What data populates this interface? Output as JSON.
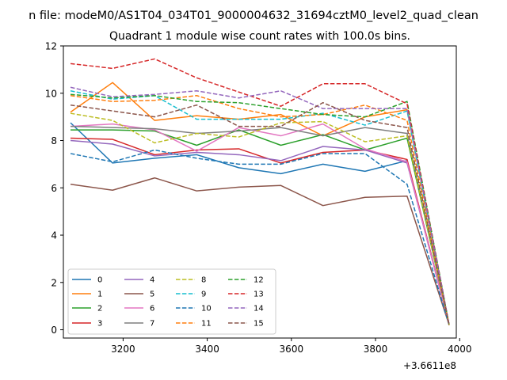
{
  "figure": {
    "suptitle": "n file: modeM0/AS1T04_034T01_9000004632_31694cztM0_level2_quad_clean",
    "background": "#ffffff"
  },
  "chart_data": {
    "type": "line",
    "title": "Quadrant 1 module wise count rates with 100.0s bins.",
    "xlabel": "",
    "ylabel": "",
    "x_offset_label": "+3.6611e8",
    "x_offset": 366110000,
    "x": [
      3075,
      3175,
      3275,
      3375,
      3475,
      3575,
      3675,
      3775,
      3875,
      3975
    ],
    "xlim": [
      3058,
      3992
    ],
    "ylim": [
      -0.35,
      12.0
    ],
    "xticks": [
      3200,
      3400,
      3600,
      3800,
      4000
    ],
    "xtick_labels": [
      "3200",
      "3400",
      "3600",
      "3800",
      "4000"
    ],
    "yticks": [
      0,
      2,
      4,
      6,
      8,
      10,
      12
    ],
    "ytick_labels": [
      "0",
      "2",
      "4",
      "6",
      "8",
      "10",
      "12"
    ],
    "grid": false,
    "legend": {
      "location": "lower-left",
      "columns": 4
    },
    "series": [
      {
        "name": "0",
        "color": "#1f77b4",
        "dash": "solid",
        "values": [
          8.75,
          7.05,
          7.25,
          7.4,
          6.85,
          6.6,
          7.0,
          6.7,
          7.15,
          0.2
        ]
      },
      {
        "name": "1",
        "color": "#ff7f0e",
        "dash": "solid",
        "values": [
          9.2,
          10.45,
          8.85,
          9.05,
          8.9,
          9.1,
          8.2,
          9.0,
          9.3,
          0.2
        ]
      },
      {
        "name": "2",
        "color": "#2ca02c",
        "dash": "solid",
        "values": [
          8.45,
          8.45,
          8.4,
          7.8,
          8.45,
          7.8,
          8.25,
          7.6,
          8.1,
          0.2
        ]
      },
      {
        "name": "3",
        "color": "#d62728",
        "dash": "solid",
        "values": [
          8.1,
          8.05,
          7.4,
          7.6,
          7.65,
          7.05,
          7.5,
          7.6,
          7.2,
          0.2
        ]
      },
      {
        "name": "4",
        "color": "#9467bd",
        "dash": "solid",
        "values": [
          8.0,
          7.85,
          7.35,
          7.5,
          7.4,
          7.15,
          7.75,
          7.6,
          7.05,
          0.2
        ]
      },
      {
        "name": "5",
        "color": "#8c564b",
        "dash": "solid",
        "values": [
          6.15,
          5.9,
          6.42,
          5.87,
          6.03,
          6.1,
          5.25,
          5.6,
          5.65,
          0.2
        ]
      },
      {
        "name": "6",
        "color": "#e377c2",
        "dash": "solid",
        "values": [
          8.6,
          8.7,
          8.45,
          7.55,
          8.55,
          8.2,
          8.7,
          7.65,
          7.1,
          0.2
        ]
      },
      {
        "name": "7",
        "color": "#7f7f7f",
        "dash": "solid",
        "values": [
          8.6,
          8.55,
          8.5,
          8.3,
          8.4,
          8.55,
          8.2,
          8.55,
          8.3,
          0.2
        ]
      },
      {
        "name": "8",
        "color": "#bcbd22",
        "dash": "dashed",
        "values": [
          9.15,
          8.85,
          7.9,
          8.3,
          8.15,
          8.75,
          8.8,
          7.95,
          8.2,
          0.2
        ]
      },
      {
        "name": "9",
        "color": "#17becf",
        "dash": "dashed",
        "values": [
          10.1,
          9.75,
          9.9,
          8.9,
          8.9,
          8.9,
          9.15,
          8.65,
          9.25,
          0.2
        ]
      },
      {
        "name": "10",
        "color": "#1f77b4",
        "dash": "dashed",
        "values": [
          7.45,
          7.1,
          7.6,
          7.25,
          7.0,
          7.0,
          7.45,
          7.45,
          6.15,
          0.2
        ]
      },
      {
        "name": "11",
        "color": "#ff7f0e",
        "dash": "dashed",
        "values": [
          9.9,
          9.65,
          9.7,
          9.9,
          9.35,
          9.0,
          9.1,
          9.5,
          8.85,
          0.2
        ]
      },
      {
        "name": "12",
        "color": "#2ca02c",
        "dash": "dashed",
        "values": [
          9.95,
          9.8,
          9.9,
          9.65,
          9.6,
          9.35,
          9.1,
          9.0,
          9.65,
          0.2
        ]
      },
      {
        "name": "13",
        "color": "#d62728",
        "dash": "dashed",
        "values": [
          11.25,
          11.05,
          11.45,
          10.65,
          10.05,
          9.45,
          10.4,
          10.4,
          9.55,
          0.2
        ]
      },
      {
        "name": "14",
        "color": "#9467bd",
        "dash": "dashed",
        "values": [
          10.25,
          9.85,
          9.95,
          10.1,
          9.8,
          10.1,
          9.35,
          9.35,
          9.35,
          0.2
        ]
      },
      {
        "name": "15",
        "color": "#8c564b",
        "dash": "dashed",
        "values": [
          9.5,
          9.25,
          9.0,
          9.5,
          8.6,
          8.6,
          9.6,
          8.85,
          8.55,
          0.2
        ]
      }
    ]
  }
}
